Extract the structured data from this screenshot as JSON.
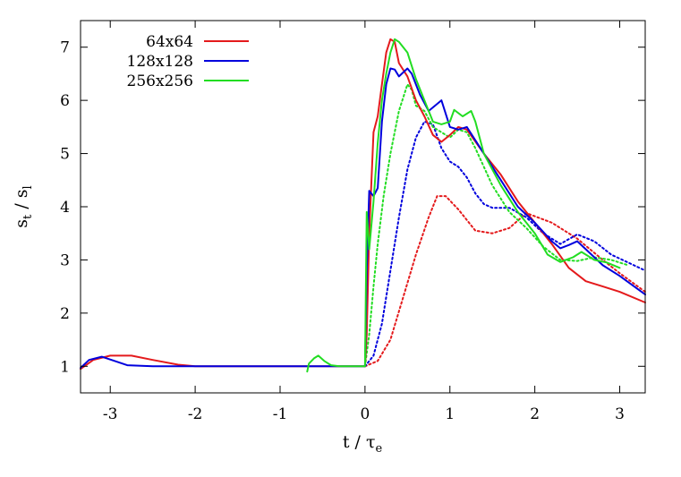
{
  "chart_data": {
    "type": "line",
    "xlabel": {
      "main": "t / τ",
      "sub": "e"
    },
    "ylabel": {
      "main": "s",
      "sub1": "t",
      "mid": " / s",
      "sub2": "l"
    },
    "xlim": [
      -3.35,
      3.3
    ],
    "ylim": [
      0.5,
      7.5
    ],
    "xticks": [
      -3,
      -2,
      -1,
      0,
      1,
      2,
      3
    ],
    "yticks": [
      1,
      2,
      3,
      4,
      5,
      6,
      7
    ],
    "grid": false,
    "legend_position": "top-left",
    "series": [
      {
        "name": "64x64",
        "color": "#e41a1c",
        "dash": "solid",
        "points": [
          [
            -3.35,
            0.95
          ],
          [
            -3.2,
            1.12
          ],
          [
            -3.0,
            1.2
          ],
          [
            -2.75,
            1.2
          ],
          [
            -2.5,
            1.12
          ],
          [
            -2.2,
            1.03
          ],
          [
            -2.0,
            1.0
          ],
          [
            -1.0,
            1.0
          ],
          [
            0.0,
            1.0
          ],
          [
            0.02,
            1.6
          ],
          [
            0.05,
            3.5
          ],
          [
            0.1,
            5.4
          ],
          [
            0.15,
            5.7
          ],
          [
            0.2,
            6.3
          ],
          [
            0.25,
            6.9
          ],
          [
            0.3,
            7.15
          ],
          [
            0.35,
            7.1
          ],
          [
            0.4,
            6.7
          ],
          [
            0.5,
            6.45
          ],
          [
            0.6,
            6.0
          ],
          [
            0.7,
            5.7
          ],
          [
            0.8,
            5.35
          ],
          [
            0.9,
            5.22
          ],
          [
            1.0,
            5.35
          ],
          [
            1.1,
            5.5
          ],
          [
            1.2,
            5.45
          ],
          [
            1.4,
            5.0
          ],
          [
            1.6,
            4.6
          ],
          [
            1.8,
            4.1
          ],
          [
            2.0,
            3.7
          ],
          [
            2.2,
            3.3
          ],
          [
            2.4,
            2.85
          ],
          [
            2.6,
            2.6
          ],
          [
            2.8,
            2.5
          ],
          [
            3.0,
            2.4
          ],
          [
            3.3,
            2.2
          ]
        ]
      },
      {
        "name": "128x128",
        "color": "#0000dd",
        "dash": "solid",
        "points": [
          [
            -3.35,
            0.97
          ],
          [
            -3.25,
            1.12
          ],
          [
            -3.1,
            1.18
          ],
          [
            -2.95,
            1.1
          ],
          [
            -2.8,
            1.02
          ],
          [
            -2.5,
            1.0
          ],
          [
            -1.0,
            1.0
          ],
          [
            0.0,
            1.0
          ],
          [
            0.02,
            2.8
          ],
          [
            0.05,
            4.3
          ],
          [
            0.1,
            4.2
          ],
          [
            0.15,
            4.35
          ],
          [
            0.2,
            5.6
          ],
          [
            0.25,
            6.3
          ],
          [
            0.3,
            6.6
          ],
          [
            0.35,
            6.58
          ],
          [
            0.4,
            6.45
          ],
          [
            0.5,
            6.6
          ],
          [
            0.55,
            6.5
          ],
          [
            0.65,
            6.1
          ],
          [
            0.75,
            5.8
          ],
          [
            0.9,
            6.0
          ],
          [
            1.0,
            5.5
          ],
          [
            1.1,
            5.45
          ],
          [
            1.2,
            5.5
          ],
          [
            1.4,
            5.0
          ],
          [
            1.6,
            4.5
          ],
          [
            1.8,
            4.0
          ],
          [
            2.0,
            3.7
          ],
          [
            2.2,
            3.35
          ],
          [
            2.3,
            3.22
          ],
          [
            2.4,
            3.28
          ],
          [
            2.5,
            3.35
          ],
          [
            2.6,
            3.2
          ],
          [
            2.8,
            2.9
          ],
          [
            3.0,
            2.7
          ],
          [
            3.3,
            2.35
          ]
        ]
      },
      {
        "name": "256x256",
        "color": "#22dd22",
        "dash": "solid",
        "points": [
          [
            -0.68,
            0.9
          ],
          [
            -0.66,
            1.05
          ],
          [
            -0.6,
            1.15
          ],
          [
            -0.55,
            1.2
          ],
          [
            -0.48,
            1.1
          ],
          [
            -0.4,
            1.02
          ],
          [
            -0.3,
            1.0
          ],
          [
            0.0,
            1.0
          ],
          [
            0.02,
            3.9
          ],
          [
            0.05,
            3.2
          ],
          [
            0.1,
            4.1
          ],
          [
            0.15,
            5.2
          ],
          [
            0.2,
            6.0
          ],
          [
            0.25,
            6.5
          ],
          [
            0.3,
            6.9
          ],
          [
            0.35,
            7.15
          ],
          [
            0.4,
            7.1
          ],
          [
            0.5,
            6.9
          ],
          [
            0.6,
            6.4
          ],
          [
            0.7,
            6.0
          ],
          [
            0.8,
            5.6
          ],
          [
            0.9,
            5.55
          ],
          [
            1.0,
            5.6
          ],
          [
            1.05,
            5.82
          ],
          [
            1.15,
            5.7
          ],
          [
            1.25,
            5.8
          ],
          [
            1.3,
            5.6
          ],
          [
            1.4,
            5.0
          ],
          [
            1.6,
            4.4
          ],
          [
            1.8,
            3.9
          ],
          [
            2.0,
            3.5
          ],
          [
            2.15,
            3.1
          ],
          [
            2.3,
            2.96
          ],
          [
            2.45,
            3.05
          ],
          [
            2.55,
            3.15
          ],
          [
            2.7,
            3.0
          ],
          [
            2.85,
            2.95
          ],
          [
            3.0,
            2.85
          ]
        ]
      },
      {
        "name": "",
        "color": "#e41a1c",
        "dash": "dotted",
        "points": [
          [
            0.0,
            1.0
          ],
          [
            0.15,
            1.1
          ],
          [
            0.3,
            1.5
          ],
          [
            0.45,
            2.3
          ],
          [
            0.6,
            3.1
          ],
          [
            0.75,
            3.8
          ],
          [
            0.85,
            4.2
          ],
          [
            0.95,
            4.2
          ],
          [
            1.1,
            3.95
          ],
          [
            1.3,
            3.55
          ],
          [
            1.5,
            3.5
          ],
          [
            1.7,
            3.6
          ],
          [
            1.9,
            3.88
          ],
          [
            2.2,
            3.7
          ],
          [
            2.5,
            3.4
          ],
          [
            2.8,
            3.0
          ],
          [
            3.0,
            2.75
          ],
          [
            3.3,
            2.4
          ]
        ]
      },
      {
        "name": "",
        "color": "#0000dd",
        "dash": "dotted",
        "points": [
          [
            0.0,
            1.0
          ],
          [
            0.1,
            1.2
          ],
          [
            0.2,
            1.8
          ],
          [
            0.3,
            2.8
          ],
          [
            0.4,
            3.8
          ],
          [
            0.5,
            4.7
          ],
          [
            0.6,
            5.3
          ],
          [
            0.7,
            5.6
          ],
          [
            0.8,
            5.55
          ],
          [
            0.9,
            5.1
          ],
          [
            1.0,
            4.85
          ],
          [
            1.1,
            4.75
          ],
          [
            1.2,
            4.55
          ],
          [
            1.3,
            4.25
          ],
          [
            1.4,
            4.05
          ],
          [
            1.5,
            3.98
          ],
          [
            1.7,
            3.98
          ],
          [
            1.9,
            3.8
          ],
          [
            2.1,
            3.5
          ],
          [
            2.3,
            3.3
          ],
          [
            2.5,
            3.48
          ],
          [
            2.7,
            3.35
          ],
          [
            2.9,
            3.1
          ],
          [
            3.1,
            2.95
          ],
          [
            3.3,
            2.8
          ]
        ]
      },
      {
        "name": "",
        "color": "#22dd22",
        "dash": "dotted",
        "points": [
          [
            0.0,
            1.0
          ],
          [
            0.05,
            1.6
          ],
          [
            0.1,
            2.5
          ],
          [
            0.15,
            3.3
          ],
          [
            0.22,
            4.2
          ],
          [
            0.3,
            5.0
          ],
          [
            0.4,
            5.8
          ],
          [
            0.5,
            6.3
          ],
          [
            0.55,
            6.2
          ],
          [
            0.6,
            5.9
          ],
          [
            0.7,
            5.8
          ],
          [
            0.8,
            5.5
          ],
          [
            0.9,
            5.4
          ],
          [
            1.0,
            5.3
          ],
          [
            1.1,
            5.45
          ],
          [
            1.2,
            5.4
          ],
          [
            1.3,
            5.1
          ],
          [
            1.5,
            4.4
          ],
          [
            1.7,
            3.9
          ],
          [
            1.9,
            3.6
          ],
          [
            2.1,
            3.25
          ],
          [
            2.3,
            3.0
          ],
          [
            2.5,
            2.98
          ],
          [
            2.7,
            3.05
          ],
          [
            2.9,
            3.0
          ],
          [
            3.1,
            2.9
          ]
        ]
      }
    ]
  }
}
